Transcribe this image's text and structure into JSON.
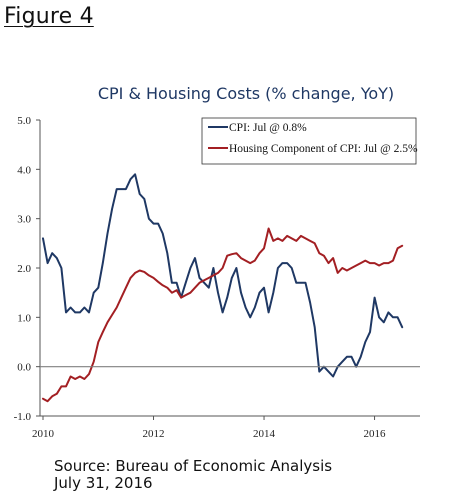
{
  "figure_label": "Figure 4",
  "source": {
    "line1": "Source: Bureau of Economic Analysis",
    "line2": "July 31, 2016"
  },
  "colors": {
    "cpi": "#1f3864",
    "housing": "#a31f23",
    "title": "#1f3864",
    "zero_line": "#808080"
  },
  "chart_data": {
    "type": "line",
    "title": "CPI & Housing Costs (% change, YoY)",
    "xlabel": "",
    "ylabel": "",
    "xlim": [
      2010.0,
      2016.75
    ],
    "ylim": [
      -1.0,
      5.0
    ],
    "y_ticks": [
      "5.0",
      "4.0",
      "3.0",
      "2.0",
      "1.0",
      "0.0",
      "-1.0"
    ],
    "y_tick_values": [
      5,
      4,
      3,
      2,
      1,
      0,
      -1
    ],
    "x_ticks": [
      "2010",
      "2012",
      "2014",
      "2016"
    ],
    "x_tick_values": [
      2010,
      2012,
      2014,
      2016
    ],
    "grid": false,
    "legend_position": "top-right",
    "series": [
      {
        "name": "CPI: Jul @ 0.8%",
        "color": "#1f3864",
        "x": [
          2010.0,
          2010.083,
          2010.167,
          2010.25,
          2010.333,
          2010.417,
          2010.5,
          2010.583,
          2010.667,
          2010.75,
          2010.833,
          2010.917,
          2011.0,
          2011.083,
          2011.167,
          2011.25,
          2011.333,
          2011.417,
          2011.5,
          2011.583,
          2011.667,
          2011.75,
          2011.833,
          2011.917,
          2012.0,
          2012.083,
          2012.167,
          2012.25,
          2012.333,
          2012.417,
          2012.5,
          2012.583,
          2012.667,
          2012.75,
          2012.833,
          2012.917,
          2013.0,
          2013.083,
          2013.167,
          2013.25,
          2013.333,
          2013.417,
          2013.5,
          2013.583,
          2013.667,
          2013.75,
          2013.833,
          2013.917,
          2014.0,
          2014.083,
          2014.167,
          2014.25,
          2014.333,
          2014.417,
          2014.5,
          2014.583,
          2014.667,
          2014.75,
          2014.833,
          2014.917,
          2015.0,
          2015.083,
          2015.167,
          2015.25,
          2015.333,
          2015.417,
          2015.5,
          2015.583,
          2015.667,
          2015.75,
          2015.833,
          2015.917,
          2016.0,
          2016.083,
          2016.167,
          2016.25,
          2016.333,
          2016.417,
          2016.5
        ],
        "values": [
          2.6,
          2.1,
          2.3,
          2.2,
          2.0,
          1.1,
          1.2,
          1.1,
          1.1,
          1.2,
          1.1,
          1.5,
          1.6,
          2.1,
          2.7,
          3.2,
          3.6,
          3.6,
          3.6,
          3.8,
          3.9,
          3.5,
          3.4,
          3.0,
          2.9,
          2.9,
          2.7,
          2.3,
          1.7,
          1.7,
          1.4,
          1.7,
          2.0,
          2.2,
          1.8,
          1.7,
          1.6,
          2.0,
          1.5,
          1.1,
          1.4,
          1.8,
          2.0,
          1.5,
          1.2,
          1.0,
          1.2,
          1.5,
          1.6,
          1.1,
          1.5,
          2.0,
          2.1,
          2.1,
          2.0,
          1.7,
          1.7,
          1.7,
          1.3,
          0.8,
          -0.1,
          0.0,
          -0.1,
          -0.2,
          0.0,
          0.1,
          0.2,
          0.2,
          0.0,
          0.2,
          0.5,
          0.7,
          1.4,
          1.0,
          0.9,
          1.1,
          1.0,
          1.0,
          0.8
        ]
      },
      {
        "name": "Housing Component of CPI: Jul @ 2.5%",
        "color": "#a31f23",
        "x": [
          2010.0,
          2010.083,
          2010.167,
          2010.25,
          2010.333,
          2010.417,
          2010.5,
          2010.583,
          2010.667,
          2010.75,
          2010.833,
          2010.917,
          2011.0,
          2011.083,
          2011.167,
          2011.25,
          2011.333,
          2011.417,
          2011.5,
          2011.583,
          2011.667,
          2011.75,
          2011.833,
          2011.917,
          2012.0,
          2012.083,
          2012.167,
          2012.25,
          2012.333,
          2012.417,
          2012.5,
          2012.583,
          2012.667,
          2012.75,
          2012.833,
          2012.917,
          2013.0,
          2013.083,
          2013.167,
          2013.25,
          2013.333,
          2013.417,
          2013.5,
          2013.583,
          2013.667,
          2013.75,
          2013.833,
          2013.917,
          2014.0,
          2014.083,
          2014.167,
          2014.25,
          2014.333,
          2014.417,
          2014.5,
          2014.583,
          2014.667,
          2014.75,
          2014.833,
          2014.917,
          2015.0,
          2015.083,
          2015.167,
          2015.25,
          2015.333,
          2015.417,
          2015.5,
          2015.583,
          2015.667,
          2015.75,
          2015.833,
          2015.917,
          2016.0,
          2016.083,
          2016.167,
          2016.25,
          2016.333,
          2016.417,
          2016.5
        ],
        "values": [
          -0.65,
          -0.7,
          -0.6,
          -0.55,
          -0.4,
          -0.4,
          -0.2,
          -0.25,
          -0.2,
          -0.25,
          -0.15,
          0.1,
          0.5,
          0.7,
          0.9,
          1.05,
          1.2,
          1.4,
          1.6,
          1.8,
          1.9,
          1.95,
          1.92,
          1.85,
          1.8,
          1.72,
          1.65,
          1.6,
          1.5,
          1.55,
          1.4,
          1.45,
          1.5,
          1.6,
          1.7,
          1.75,
          1.8,
          1.85,
          1.9,
          2.0,
          2.25,
          2.28,
          2.3,
          2.2,
          2.15,
          2.1,
          2.15,
          2.3,
          2.4,
          2.8,
          2.55,
          2.6,
          2.55,
          2.65,
          2.6,
          2.55,
          2.65,
          2.6,
          2.55,
          2.5,
          2.3,
          2.25,
          2.1,
          2.2,
          1.9,
          2.0,
          1.95,
          2.0,
          2.05,
          2.1,
          2.15,
          2.1,
          2.1,
          2.05,
          2.1,
          2.1,
          2.15,
          2.4,
          2.45
        ]
      }
    ]
  }
}
